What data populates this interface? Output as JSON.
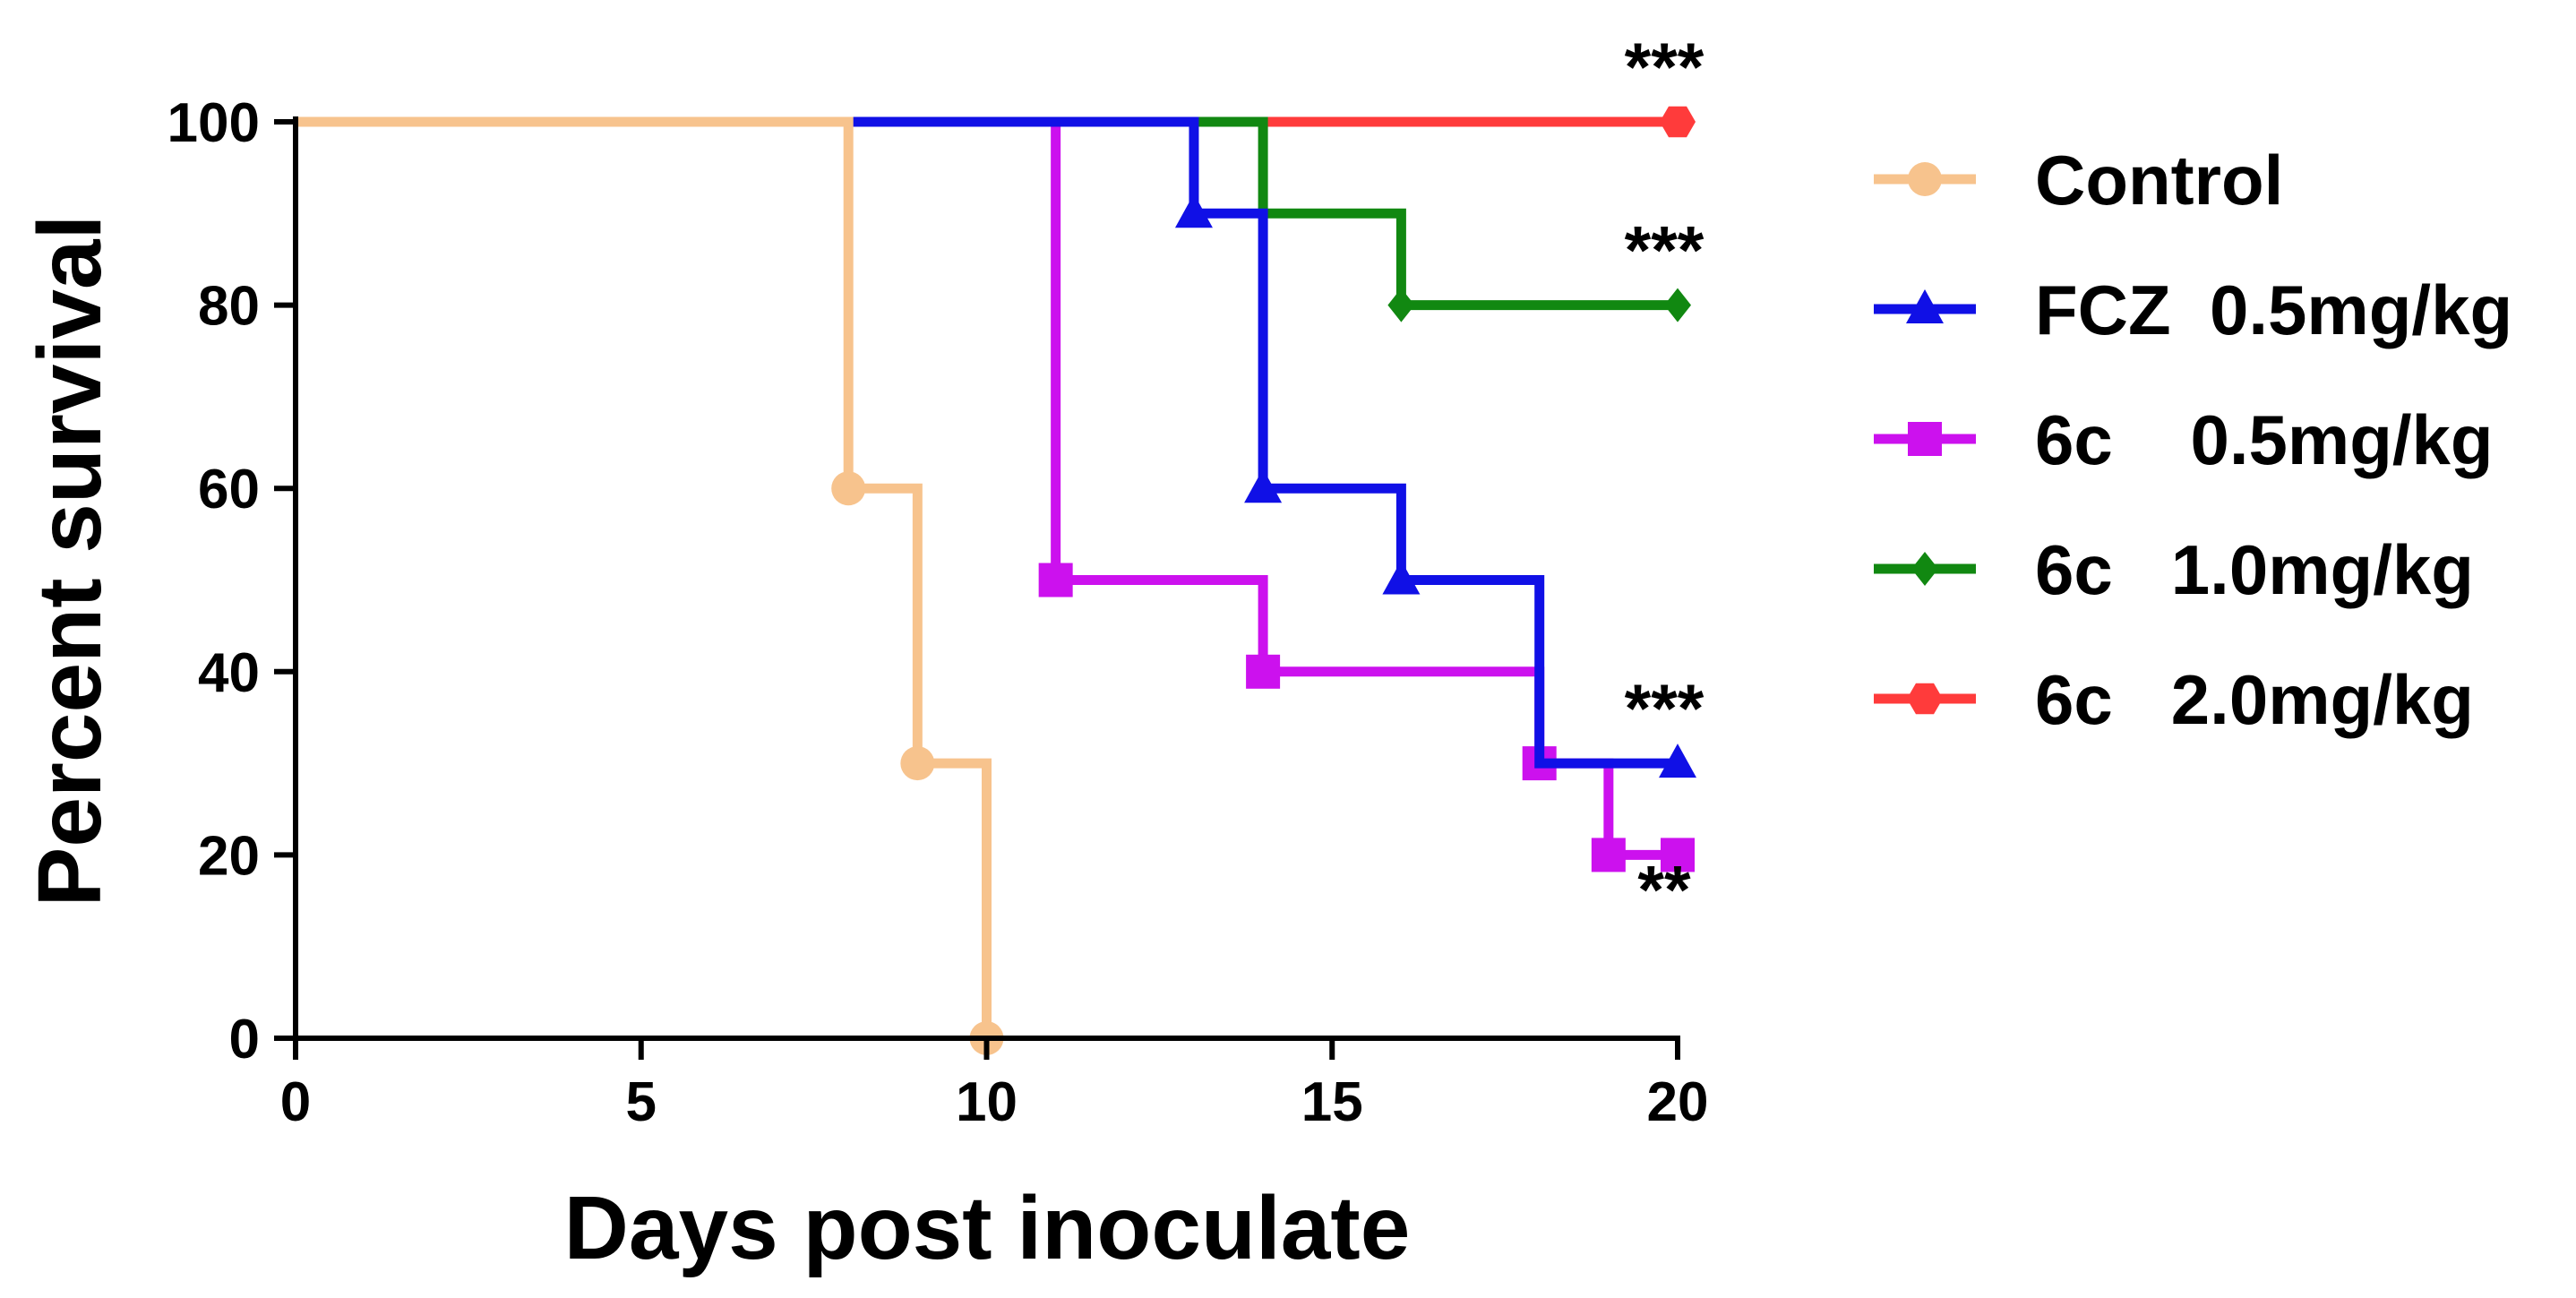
{
  "chart_data": {
    "type": "line",
    "step": true,
    "title": "",
    "xlabel": "Days post inoculate",
    "ylabel": "Percent survival",
    "xlim": [
      0,
      20
    ],
    "ylim": [
      0,
      100
    ],
    "xticks": [
      0,
      5,
      10,
      15,
      20
    ],
    "yticks": [
      0,
      20,
      40,
      60,
      80,
      100
    ],
    "grid": false,
    "legend_position": "right",
    "series": [
      {
        "name": "Control",
        "color": "#f7c38d",
        "marker": "circle",
        "x": [
          0,
          8,
          9,
          10
        ],
        "y": [
          100,
          60,
          30,
          0
        ],
        "markers_at": [
          8,
          9,
          10
        ]
      },
      {
        "name": "FCZ  0.5mg/kg",
        "color": "#1010e6",
        "marker": "triangle",
        "x": [
          0,
          13,
          14,
          16,
          18,
          20
        ],
        "y": [
          100,
          90,
          60,
          50,
          30,
          30
        ],
        "markers_at": [
          13,
          14,
          16,
          20
        ]
      },
      {
        "name": "6c    0.5mg/kg",
        "color": "#cc11ee",
        "marker": "square",
        "x": [
          0,
          11,
          14,
          18,
          19,
          20
        ],
        "y": [
          100,
          50,
          40,
          30,
          20,
          20
        ],
        "markers_at": [
          11,
          14,
          18,
          19,
          20
        ]
      },
      {
        "name": "6c   1.0mg/kg",
        "color": "#118811",
        "marker": "diamond",
        "x": [
          0,
          14,
          16,
          20
        ],
        "y": [
          100,
          90,
          80,
          80
        ],
        "markers_at": [
          16,
          20
        ]
      },
      {
        "name": "6c   2.0mg/kg",
        "color": "#ff3b3b",
        "marker": "hexagon",
        "x": [
          0,
          20
        ],
        "y": [
          100,
          100
        ],
        "markers_at": [
          20
        ]
      }
    ],
    "annotations": [
      {
        "text": "***",
        "x": 20,
        "y": 100
      },
      {
        "text": "***",
        "x": 20,
        "y": 80
      },
      {
        "text": "***",
        "x": 20,
        "y": 30
      },
      {
        "text": "**",
        "x": 20,
        "y": 20
      }
    ]
  }
}
